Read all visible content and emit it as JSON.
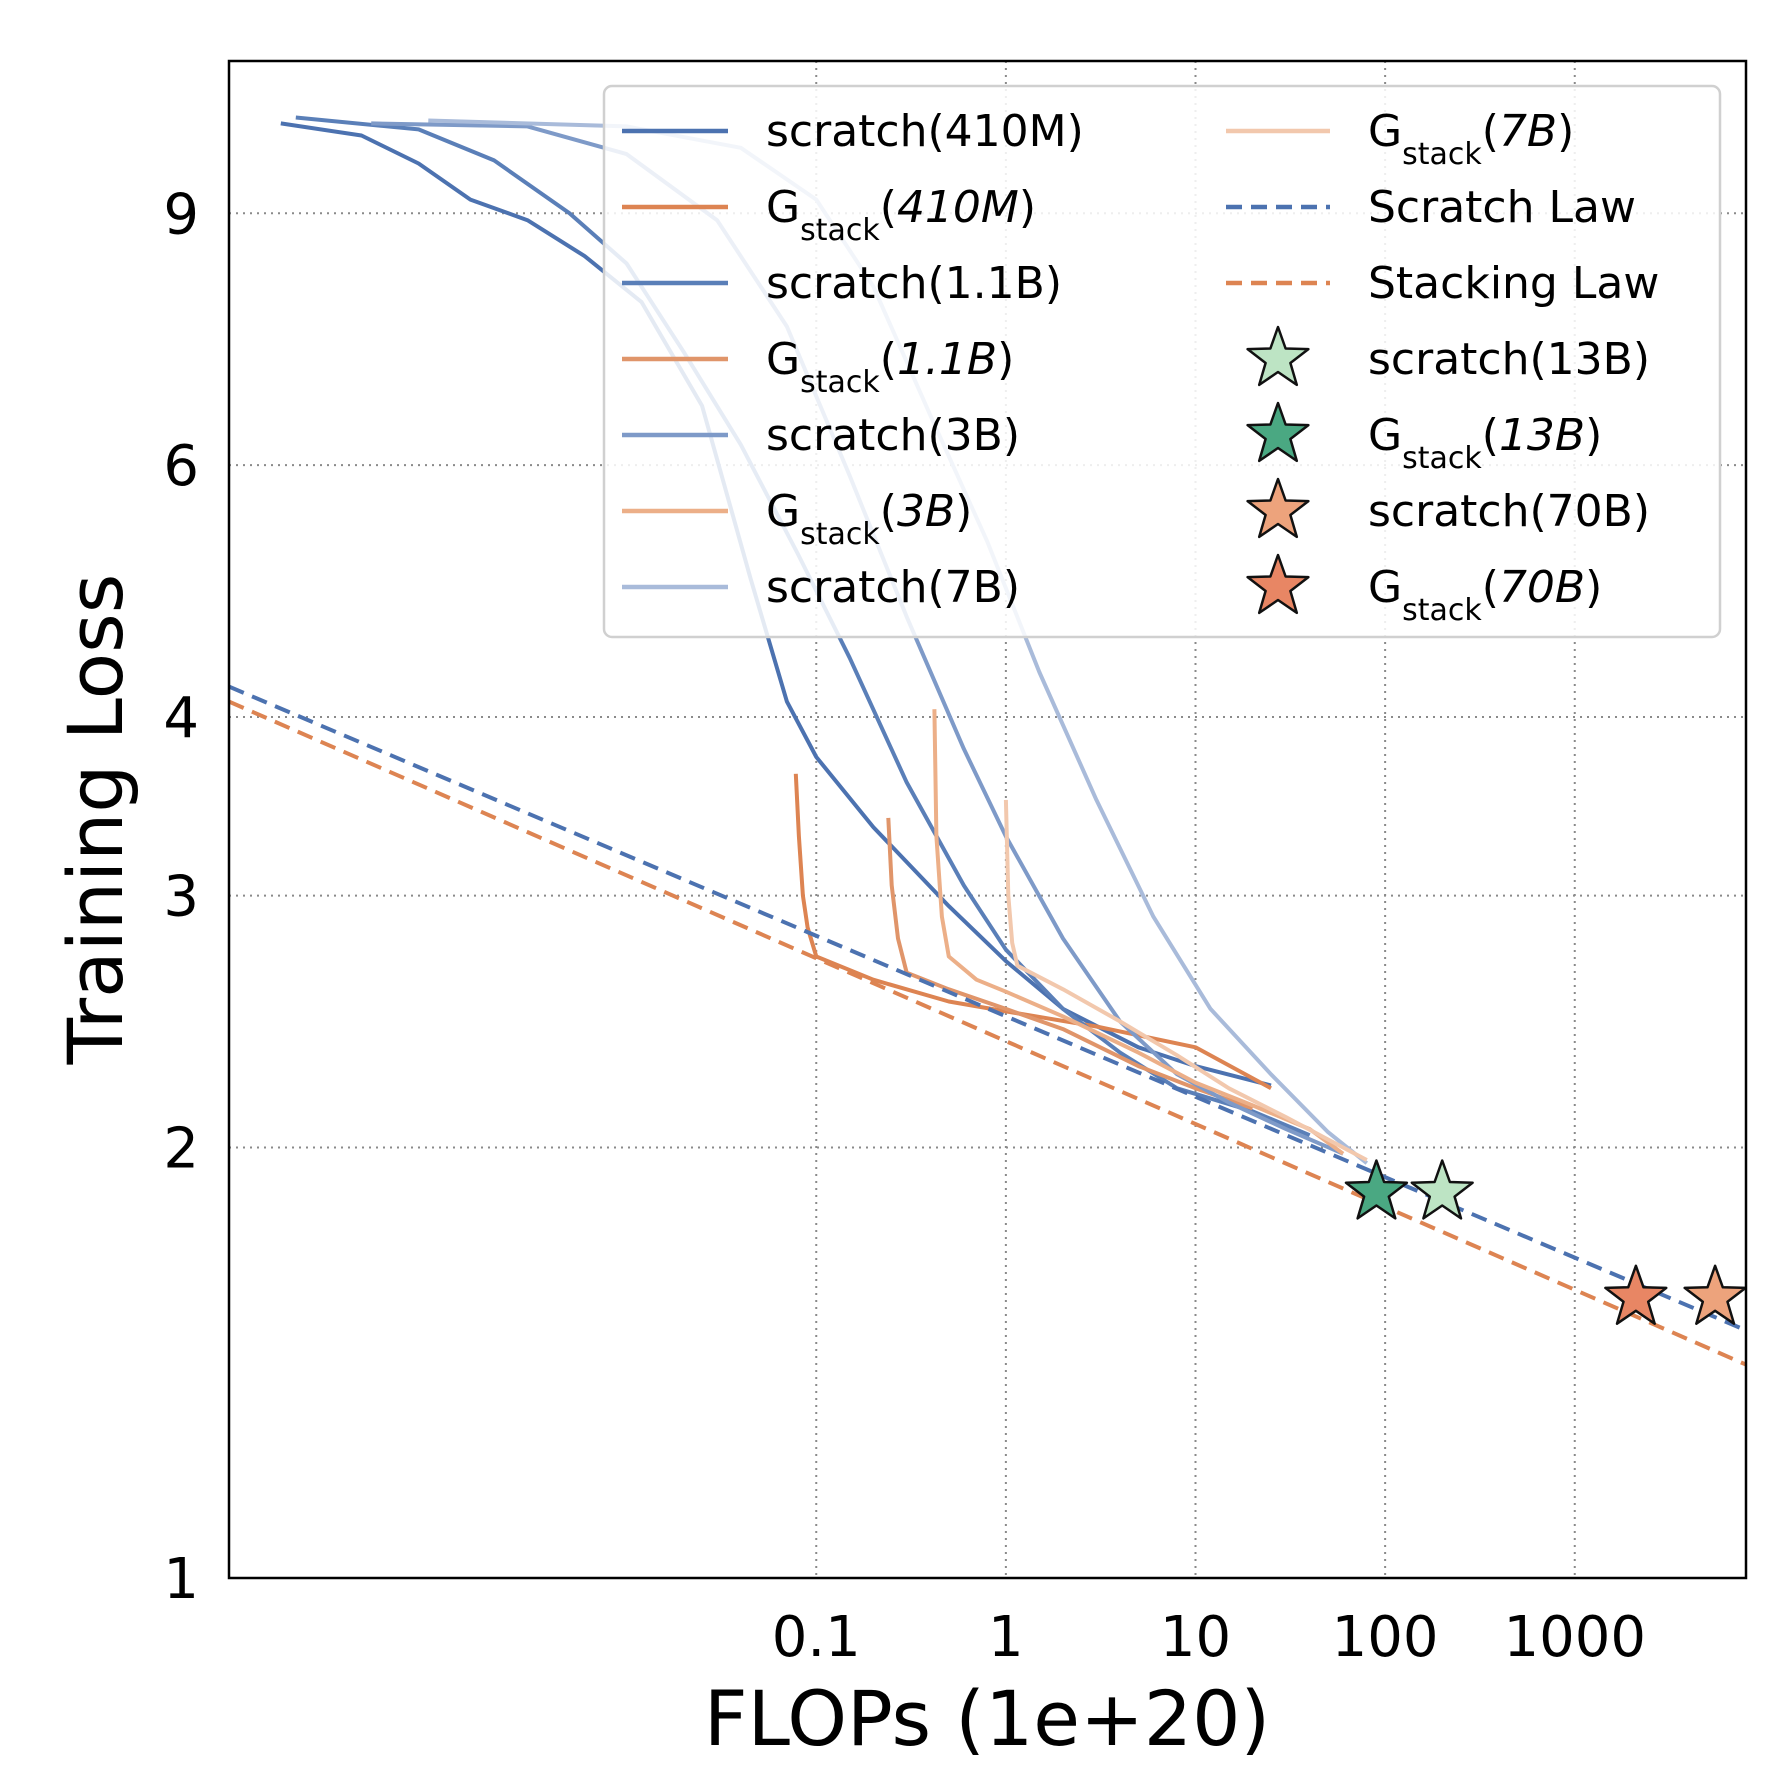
{
  "chart_data": {
    "type": "line",
    "title": "",
    "xlabel": "FLOPs (1e+20)",
    "ylabel": "Training Loss",
    "x_scale": "log",
    "y_scale": "log",
    "xlim": [
      8e-05,
      8000
    ],
    "ylim": [
      1,
      11.5
    ],
    "xticks": [
      0.1,
      1,
      10,
      100,
      1000
    ],
    "xtick_labels": [
      "0.1",
      "1",
      "10",
      "100",
      "1000"
    ],
    "yticks": [
      1,
      2,
      3,
      4,
      6,
      9
    ],
    "ytick_labels": [
      "1",
      "2",
      "3",
      "4",
      "6",
      "9"
    ],
    "grid": "dotted",
    "legend_position": "top-right",
    "series": [
      {
        "name": "scratch(410M)",
        "name_html": "scratch(410M)",
        "color": "#4c72b0",
        "style": "solid",
        "points": [
          [
            0.00015,
            10.4
          ],
          [
            0.0004,
            10.2
          ],
          [
            0.0008,
            9.75
          ],
          [
            0.0015,
            9.2
          ],
          [
            0.003,
            8.9
          ],
          [
            0.006,
            8.4
          ],
          [
            0.012,
            7.8
          ],
          [
            0.025,
            6.6
          ],
          [
            0.045,
            5.0
          ],
          [
            0.07,
            4.1
          ],
          [
            0.1,
            3.75
          ],
          [
            0.2,
            3.35
          ],
          [
            0.5,
            2.95
          ],
          [
            1,
            2.7
          ],
          [
            2,
            2.5
          ],
          [
            5,
            2.35
          ],
          [
            10,
            2.28
          ],
          [
            25,
            2.21
          ]
        ]
      },
      {
        "name": "Gstack(410M)",
        "name_html": "G<tspan baseline-shift=\"sub\" font-size=\"30\">stack</tspan>(<tspan font-style=\"italic\">410M</tspan>)",
        "color": "#dd8452",
        "style": "solid",
        "points": [
          [
            0.078,
            3.65
          ],
          [
            0.081,
            3.3
          ],
          [
            0.085,
            3.0
          ],
          [
            0.09,
            2.85
          ],
          [
            0.1,
            2.72
          ],
          [
            0.2,
            2.62
          ],
          [
            0.5,
            2.53
          ],
          [
            1,
            2.49
          ],
          [
            3,
            2.43
          ],
          [
            10,
            2.35
          ],
          [
            25,
            2.2
          ]
        ]
      },
      {
        "name": "scratch(1.1B)",
        "name_html": "scratch(1.1B)",
        "color": "#5a7fb8",
        "style": "solid",
        "points": [
          [
            0.00018,
            10.5
          ],
          [
            0.0008,
            10.3
          ],
          [
            0.002,
            9.8
          ],
          [
            0.005,
            9.0
          ],
          [
            0.01,
            8.3
          ],
          [
            0.02,
            7.2
          ],
          [
            0.04,
            6.2
          ],
          [
            0.08,
            5.2
          ],
          [
            0.15,
            4.4
          ],
          [
            0.3,
            3.6
          ],
          [
            0.6,
            3.05
          ],
          [
            1,
            2.75
          ],
          [
            2,
            2.5
          ],
          [
            4,
            2.33
          ],
          [
            8,
            2.2
          ],
          [
            20,
            2.12
          ],
          [
            40,
            2.04
          ]
        ]
      },
      {
        "name": "Gstack(1.1B)",
        "name_html": "G<tspan baseline-shift=\"sub\" font-size=\"30\">stack</tspan>(<tspan font-style=\"italic\">1.1B</tspan>)",
        "color": "#e0956a",
        "style": "solid",
        "points": [
          [
            0.24,
            3.4
          ],
          [
            0.25,
            3.05
          ],
          [
            0.27,
            2.8
          ],
          [
            0.3,
            2.65
          ],
          [
            0.5,
            2.58
          ],
          [
            1,
            2.5
          ],
          [
            2,
            2.42
          ],
          [
            5,
            2.28
          ],
          [
            10,
            2.2
          ],
          [
            20,
            2.13
          ]
        ]
      },
      {
        "name": "scratch(3B)",
        "name_html": "scratch(3B)",
        "color": "#7e9ac8",
        "style": "solid",
        "points": [
          [
            0.00045,
            10.4
          ],
          [
            0.003,
            10.35
          ],
          [
            0.01,
            9.9
          ],
          [
            0.03,
            8.9
          ],
          [
            0.07,
            7.5
          ],
          [
            0.15,
            5.9
          ],
          [
            0.3,
            4.7
          ],
          [
            0.6,
            3.8
          ],
          [
            1,
            3.3
          ],
          [
            2,
            2.8
          ],
          [
            4,
            2.45
          ],
          [
            8,
            2.25
          ],
          [
            15,
            2.15
          ],
          [
            30,
            2.06
          ],
          [
            60,
            1.98
          ]
        ]
      },
      {
        "name": "Gstack(3B)",
        "name_html": "G<tspan baseline-shift=\"sub\" font-size=\"30\">stack</tspan>(<tspan font-style=\"italic\">3B</tspan>)",
        "color": "#ecaf88",
        "style": "solid",
        "points": [
          [
            0.42,
            4.05
          ],
          [
            0.43,
            3.3
          ],
          [
            0.46,
            2.9
          ],
          [
            0.5,
            2.72
          ],
          [
            0.7,
            2.62
          ],
          [
            1,
            2.57
          ],
          [
            2,
            2.47
          ],
          [
            5,
            2.33
          ],
          [
            10,
            2.22
          ],
          [
            20,
            2.14
          ],
          [
            40,
            2.06
          ],
          [
            60,
            1.98
          ]
        ]
      },
      {
        "name": "scratch(7B)",
        "name_html": "scratch(7B)",
        "color": "#a9bbda",
        "style": "solid",
        "points": [
          [
            0.0009,
            10.45
          ],
          [
            0.01,
            10.35
          ],
          [
            0.04,
            10.0
          ],
          [
            0.1,
            9.2
          ],
          [
            0.2,
            8.0
          ],
          [
            0.4,
            6.5
          ],
          [
            0.8,
            5.3
          ],
          [
            1.5,
            4.3
          ],
          [
            3,
            3.5
          ],
          [
            6,
            2.9
          ],
          [
            12,
            2.5
          ],
          [
            25,
            2.25
          ],
          [
            50,
            2.05
          ],
          [
            80,
            1.95
          ]
        ]
      },
      {
        "name": "Gstack(7B)",
        "name_html": "G<tspan baseline-shift=\"sub\" font-size=\"30\">stack</tspan>(<tspan font-style=\"italic\">7B</tspan>)",
        "color": "#f2c8ad",
        "style": "solid",
        "points": [
          [
            1.0,
            3.5
          ],
          [
            1.03,
            3.0
          ],
          [
            1.08,
            2.78
          ],
          [
            1.15,
            2.68
          ],
          [
            2,
            2.58
          ],
          [
            4,
            2.45
          ],
          [
            8,
            2.32
          ],
          [
            15,
            2.2
          ],
          [
            30,
            2.1
          ],
          [
            60,
            2.0
          ],
          [
            80,
            1.96
          ]
        ]
      },
      {
        "name": "Scratch Law",
        "name_html": "Scratch Law",
        "color": "#4c72b0",
        "style": "dashed",
        "points": [
          [
            8e-05,
            4.2
          ],
          [
            8000,
            1.49
          ]
        ]
      },
      {
        "name": "Stacking Law",
        "name_html": "Stacking Law",
        "color": "#dd8452",
        "style": "dashed",
        "points": [
          [
            8e-05,
            4.1
          ],
          [
            8000,
            1.41
          ]
        ]
      }
    ],
    "markers": [
      {
        "name": "scratch(13B)",
        "name_html": "scratch(13B)",
        "color": "#bde4c4",
        "x": 200,
        "y": 1.86
      },
      {
        "name": "Gstack(13B)",
        "name_html": "G<tspan baseline-shift=\"sub\" font-size=\"30\">stack</tspan>(<tspan font-style=\"italic\">13B</tspan>)",
        "color": "#4aa882",
        "x": 90,
        "y": 1.86
      },
      {
        "name": "scratch(70B)",
        "name_html": "scratch(70B)",
        "color": "#eda37c",
        "x": 5500,
        "y": 1.57
      },
      {
        "name": "Gstack(70B)",
        "name_html": "G<tspan baseline-shift=\"sub\" font-size=\"30\">stack</tspan>(<tspan font-style=\"italic\">70B</tspan>)",
        "color": "#e88664",
        "x": 2100,
        "y": 1.57
      }
    ],
    "legend": {
      "columns": [
        [
          "scratch(410M)",
          "Gstack(410M)",
          "scratch(1.1B)",
          "Gstack(1.1B)",
          "scratch(3B)",
          "Gstack(3B)",
          "scratch(7B)"
        ],
        [
          "Gstack(7B)",
          "Scratch Law",
          "Stacking Law",
          "scratch(13B)",
          "Gstack(13B)",
          "scratch(70B)",
          "Gstack(70B)"
        ]
      ]
    }
  }
}
